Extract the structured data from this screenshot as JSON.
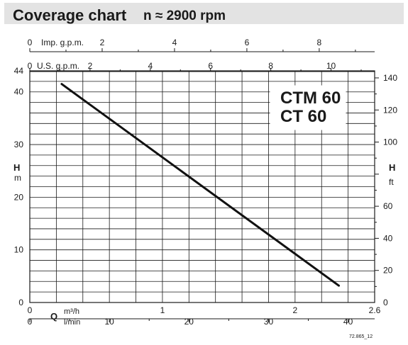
{
  "header": {
    "title": "Coverage chart",
    "speed": "n ≈ 2900 rpm"
  },
  "chart_data": {
    "type": "line",
    "models": [
      "CTM 60",
      "CT 60"
    ],
    "series": [
      {
        "values": [
          [
            0.24,
            41.5
          ],
          [
            2.33,
            3.2
          ]
        ]
      }
    ],
    "x_units": {
      "primary": "m³/h",
      "secondary": "l/min"
    },
    "xlim": [
      0,
      2.6
    ],
    "ylim": [
      0,
      44
    ],
    "y_left": {
      "label_top": "H",
      "label_bottom": "m",
      "ticks": [
        0,
        10,
        20,
        30,
        40,
        44
      ]
    },
    "y_right": {
      "label_top": "H",
      "label_bottom": "ft",
      "ylim": [
        0,
        144.4
      ],
      "ticks": [
        0,
        20,
        40,
        60,
        100,
        120,
        140
      ]
    },
    "x_bottom_m3h": {
      "ticks": [
        0,
        1,
        2,
        2.6
      ]
    },
    "x_bottom_lmin": {
      "label": "Q",
      "ticks": [
        0,
        10,
        20,
        30,
        40
      ]
    },
    "x_top_imp": {
      "label": "Imp. g.p.m.",
      "ticks": [
        0,
        2,
        4,
        6,
        8
      ]
    },
    "x_top_us": {
      "label": "U.S. g.p.m.",
      "ticks": [
        0,
        2,
        4,
        6,
        8,
        10
      ]
    },
    "grid": true,
    "reference": "72.865_12"
  }
}
